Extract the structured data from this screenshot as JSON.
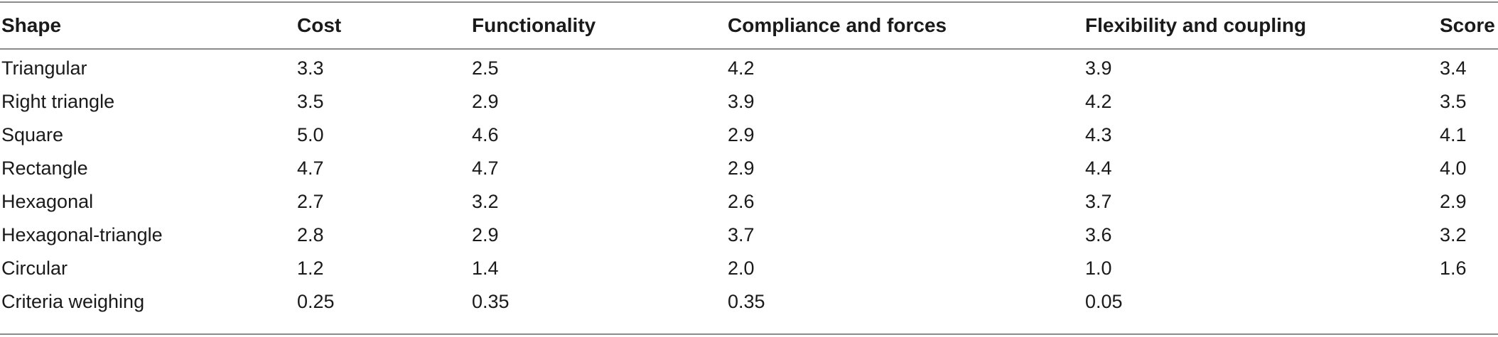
{
  "table": {
    "headers": [
      "Shape",
      "Cost",
      "Functionality",
      "Compliance and forces",
      "Flexibility and coupling",
      "Score"
    ],
    "rows": [
      [
        "Triangular",
        "3.3",
        "2.5",
        "4.2",
        "3.9",
        "3.4"
      ],
      [
        "Right triangle",
        "3.5",
        "2.9",
        "3.9",
        "4.2",
        "3.5"
      ],
      [
        "Square",
        "5.0",
        "4.6",
        "2.9",
        "4.3",
        "4.1"
      ],
      [
        "Rectangle",
        "4.7",
        "4.7",
        "2.9",
        "4.4",
        "4.0"
      ],
      [
        "Hexagonal",
        "2.7",
        "3.2",
        "2.6",
        "3.7",
        "2.9"
      ],
      [
        "Hexagonal-triangle",
        "2.8",
        "2.9",
        "3.7",
        "3.6",
        "3.2"
      ],
      [
        "Circular",
        "1.2",
        "1.4",
        "2.0",
        "1.0",
        "1.6"
      ],
      [
        "Criteria weighing",
        "0.25",
        "0.35",
        "0.35",
        "0.05",
        ""
      ]
    ]
  }
}
